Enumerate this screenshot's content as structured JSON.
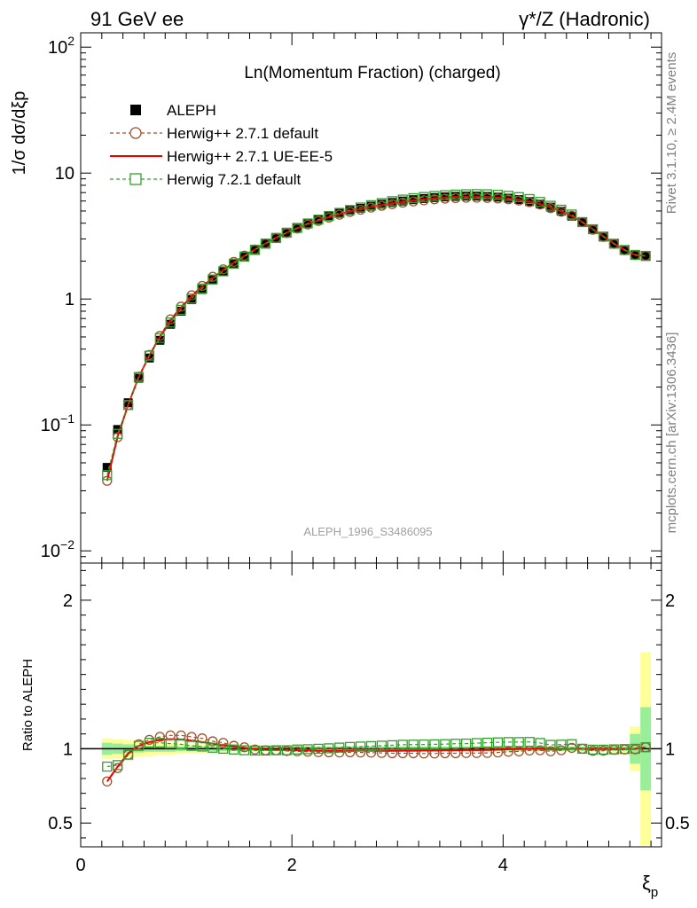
{
  "header": {
    "left": "91 GeV ee",
    "right": "γ*/Z (Hadronic)"
  },
  "side_labels": {
    "rivet": "Rivet 3.1.10, ≥ 2.4M events",
    "mcplots": "mcplots.cern.ch [arXiv:1306.3436]"
  },
  "watermark": "ALEPH_1996_S3486095",
  "colors": {
    "aleph": "#000000",
    "herwig_default": "#a0522d",
    "herwig_ueee5": "#ee0000",
    "herwig7": "#33a02c",
    "band_yellow": "#ffff99",
    "band_green": "#99ee99"
  },
  "chart_data": [
    {
      "type": "scatter",
      "panel": "main",
      "title": "Ln(Momentum Fraction) (charged)",
      "xlabel": "ξp",
      "ylabel": "1/σ dσ/dξp",
      "yscale": "log",
      "xlim": [
        0,
        5.5
      ],
      "ylim": [
        0.008,
        130
      ],
      "y_ticks": [
        "10^-2",
        "10^-1",
        "1",
        "10",
        "10^2"
      ],
      "legend_position": "top-left",
      "x": [
        0.25,
        0.35,
        0.45,
        0.55,
        0.65,
        0.75,
        0.85,
        0.95,
        1.05,
        1.15,
        1.25,
        1.35,
        1.45,
        1.55,
        1.65,
        1.75,
        1.85,
        1.95,
        2.05,
        2.15,
        2.25,
        2.35,
        2.45,
        2.55,
        2.65,
        2.75,
        2.85,
        2.95,
        3.05,
        3.15,
        3.25,
        3.35,
        3.45,
        3.55,
        3.65,
        3.75,
        3.85,
        3.95,
        4.05,
        4.15,
        4.25,
        4.35,
        4.45,
        4.55,
        4.65,
        4.75,
        4.85,
        4.95,
        5.05,
        5.15,
        5.25,
        5.35
      ],
      "series": [
        {
          "name": "ALEPH",
          "style": "filled-square",
          "values": [
            0.046,
            0.092,
            0.15,
            0.235,
            0.34,
            0.47,
            0.63,
            0.8,
            0.99,
            1.19,
            1.42,
            1.66,
            1.92,
            2.19,
            2.48,
            2.78,
            3.08,
            3.39,
            3.69,
            3.99,
            4.27,
            4.54,
            4.79,
            5.03,
            5.25,
            5.46,
            5.66,
            5.84,
            6.0,
            6.15,
            6.28,
            6.39,
            6.47,
            6.53,
            6.56,
            6.56,
            6.52,
            6.44,
            6.32,
            6.16,
            5.95,
            5.68,
            5.36,
            4.98,
            4.55,
            4.08,
            3.6,
            3.15,
            2.76,
            2.45,
            2.24,
            2.18
          ]
        },
        {
          "name": "Herwig++ 2.7.1 default",
          "style": "dashed-circle",
          "values": [
            0.036,
            0.08,
            0.144,
            0.242,
            0.36,
            0.51,
            0.69,
            0.87,
            1.07,
            1.27,
            1.5,
            1.72,
            1.97,
            2.21,
            2.47,
            2.76,
            3.05,
            3.34,
            3.63,
            3.91,
            4.17,
            4.43,
            4.67,
            4.91,
            5.12,
            5.32,
            5.5,
            5.66,
            5.82,
            5.96,
            6.08,
            6.19,
            6.27,
            6.33,
            6.37,
            6.37,
            6.34,
            6.28,
            6.19,
            6.05,
            5.88,
            5.63,
            5.27,
            4.93,
            4.58,
            4.08,
            3.55,
            3.11,
            2.74,
            2.44,
            2.23,
            2.2
          ]
        },
        {
          "name": "Herwig++ 2.7.1 UE-EE-5",
          "style": "solid-line",
          "values": [
            0.036,
            0.081,
            0.145,
            0.24,
            0.355,
            0.5,
            0.67,
            0.85,
            1.05,
            1.25,
            1.47,
            1.7,
            1.95,
            2.2,
            2.47,
            2.76,
            3.06,
            3.36,
            3.65,
            3.94,
            4.21,
            4.47,
            4.72,
            4.96,
            5.18,
            5.39,
            5.58,
            5.76,
            5.92,
            6.07,
            6.2,
            6.31,
            6.4,
            6.47,
            6.5,
            6.5,
            6.47,
            6.4,
            6.3,
            6.15,
            5.95,
            5.68,
            5.34,
            4.97,
            4.55,
            4.08,
            3.58,
            3.14,
            2.75,
            2.45,
            2.24,
            2.2
          ]
        },
        {
          "name": "Herwig 7.2.1 default",
          "style": "dashed-open-square",
          "values": [
            0.04,
            0.085,
            0.144,
            0.24,
            0.355,
            0.49,
            0.65,
            0.82,
            1.01,
            1.21,
            1.43,
            1.66,
            1.91,
            2.17,
            2.45,
            2.75,
            3.05,
            3.36,
            3.67,
            3.98,
            4.27,
            4.56,
            4.83,
            5.09,
            5.33,
            5.56,
            5.78,
            5.98,
            6.16,
            6.32,
            6.46,
            6.58,
            6.67,
            6.75,
            6.79,
            6.81,
            6.79,
            6.72,
            6.6,
            6.44,
            6.22,
            5.9,
            5.5,
            5.12,
            4.69,
            4.08,
            3.58,
            3.13,
            2.75,
            2.45,
            2.24,
            2.2
          ]
        }
      ]
    },
    {
      "type": "line",
      "panel": "ratio",
      "xlabel": "ξp",
      "ylabel": "Ratio to ALEPH",
      "xlim": [
        0,
        5.5
      ],
      "ylim": [
        0.34,
        2.25
      ],
      "x_ticks": [
        0,
        2,
        4
      ],
      "y_ticks": [
        0.5,
        1,
        2
      ],
      "reference_line": 1,
      "x": [
        0.25,
        0.35,
        0.45,
        0.55,
        0.65,
        0.75,
        0.85,
        0.95,
        1.05,
        1.15,
        1.25,
        1.35,
        1.45,
        1.55,
        1.65,
        1.75,
        1.85,
        1.95,
        2.05,
        2.15,
        2.25,
        2.35,
        2.45,
        2.55,
        2.65,
        2.75,
        2.85,
        2.95,
        3.05,
        3.15,
        3.25,
        3.35,
        3.45,
        3.55,
        3.65,
        3.75,
        3.85,
        3.95,
        4.05,
        4.15,
        4.25,
        4.35,
        4.45,
        4.55,
        4.65,
        4.75,
        4.85,
        4.95,
        5.05,
        5.15,
        5.25,
        5.35
      ],
      "uncertainty_band": {
        "green_half_width": [
          0.04,
          0.035,
          0.03,
          0.025,
          0.02,
          0.02,
          0.02,
          0.015,
          0.015,
          0.015,
          0.015,
          0.015,
          0.015,
          0.015,
          0.015,
          0.015,
          0.015,
          0.015,
          0.015,
          0.015,
          0.015,
          0.015,
          0.015,
          0.015,
          0.015,
          0.015,
          0.015,
          0.015,
          0.015,
          0.015,
          0.015,
          0.015,
          0.015,
          0.015,
          0.015,
          0.015,
          0.015,
          0.015,
          0.015,
          0.015,
          0.015,
          0.015,
          0.015,
          0.015,
          0.015,
          0.015,
          0.015,
          0.015,
          0.015,
          0.015,
          0.1,
          0.28
        ],
        "yellow_half_width": [
          0.07,
          0.065,
          0.06,
          0.055,
          0.05,
          0.045,
          0.04,
          0.035,
          0.03,
          0.03,
          0.025,
          0.025,
          0.02,
          0.02,
          0.02,
          0.02,
          0.02,
          0.02,
          0.02,
          0.02,
          0.02,
          0.02,
          0.02,
          0.02,
          0.02,
          0.02,
          0.02,
          0.02,
          0.02,
          0.02,
          0.02,
          0.02,
          0.02,
          0.02,
          0.02,
          0.02,
          0.02,
          0.02,
          0.02,
          0.02,
          0.02,
          0.02,
          0.02,
          0.02,
          0.02,
          0.02,
          0.02,
          0.02,
          0.025,
          0.03,
          0.15,
          0.65
        ]
      },
      "series": [
        {
          "name": "Herwig++ 2.7.1 default",
          "style": "dashed-circle",
          "values": [
            0.78,
            0.87,
            0.96,
            1.03,
            1.06,
            1.08,
            1.09,
            1.09,
            1.08,
            1.07,
            1.05,
            1.04,
            1.02,
            1.01,
            0.995,
            0.99,
            0.99,
            0.985,
            0.983,
            0.98,
            0.977,
            0.976,
            0.975,
            0.976,
            0.975,
            0.974,
            0.972,
            0.97,
            0.97,
            0.97,
            0.968,
            0.968,
            0.97,
            0.97,
            0.971,
            0.971,
            0.972,
            0.975,
            0.98,
            0.982,
            0.988,
            0.99,
            0.983,
            0.99,
            1.006,
            1.0,
            0.986,
            0.987,
            0.993,
            0.995,
            0.996,
            1.01
          ]
        },
        {
          "name": "Herwig++ 2.7.1 UE-EE-5",
          "style": "solid-line",
          "values": [
            0.78,
            0.88,
            0.97,
            1.02,
            1.045,
            1.06,
            1.065,
            1.062,
            1.055,
            1.045,
            1.035,
            1.025,
            1.015,
            1.005,
            0.997,
            0.994,
            0.993,
            0.992,
            0.99,
            0.988,
            0.986,
            0.985,
            0.985,
            0.986,
            0.987,
            0.987,
            0.986,
            0.986,
            0.987,
            0.987,
            0.988,
            0.988,
            0.99,
            0.99,
            0.991,
            0.991,
            0.992,
            0.994,
            0.997,
            0.998,
            1.0,
            1.0,
            0.996,
            0.998,
            1.0,
            1.0,
            0.995,
            0.997,
            0.998,
            0.999,
            1.0,
            1.01
          ]
        },
        {
          "name": "Herwig 7.2.1 default",
          "style": "dashed-open-square",
          "values": [
            0.88,
            0.89,
            0.96,
            1.02,
            1.04,
            1.04,
            1.035,
            1.03,
            1.02,
            1.015,
            1.007,
            1.0,
            0.995,
            0.99,
            0.988,
            0.988,
            0.99,
            0.99,
            0.995,
            0.997,
            1.0,
            1.003,
            1.008,
            1.012,
            1.015,
            1.018,
            1.021,
            1.024,
            1.027,
            1.028,
            1.029,
            1.03,
            1.031,
            1.034,
            1.035,
            1.038,
            1.041,
            1.043,
            1.045,
            1.045,
            1.046,
            1.039,
            1.026,
            1.028,
            1.031,
            1.0,
            0.994,
            0.994,
            0.996,
            0.998,
            1.0,
            1.01
          ]
        }
      ]
    }
  ]
}
